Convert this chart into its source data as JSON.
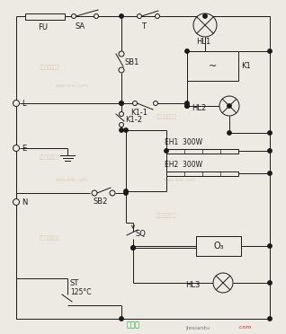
{
  "bg_color": "#ede9e3",
  "line_color": "#1a1a1a",
  "watermark_color": "#c8a87a",
  "bottom_text1": "接线图",
  "bottom_text2": "jiexiantu",
  "bottom_text3": ".com"
}
